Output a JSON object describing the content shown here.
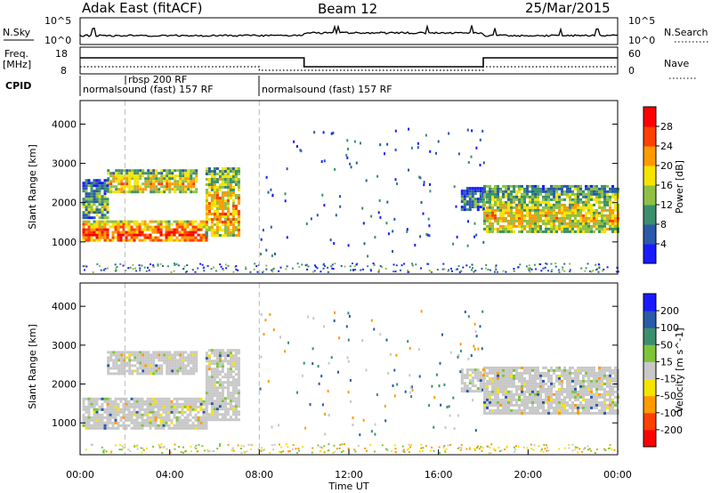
{
  "header": {
    "title": "Adak East (fitACF)",
    "beam": "Beam 12",
    "date": "25/Mar/2015"
  },
  "summary": {
    "nsky_label": "N.Sky",
    "nsky_ticks": [
      "10^5",
      "10^0"
    ],
    "nsearch_ticks": [
      "10^5",
      "10^0"
    ],
    "nsearch_label": "N.Search",
    "freq_label": "Freq.",
    "freq_unit": "[MHz]",
    "freq_ticks": [
      "18",
      "8"
    ],
    "nave_ticks": [
      "60",
      "0"
    ],
    "nave_label": "Nave",
    "cpid_label": "CPID",
    "cpid_segments": [
      {
        "start_h": 0,
        "end_h": 2,
        "label": "normalsound (fast) 157 RF"
      },
      {
        "start_h": 2,
        "end_h": 8,
        "label": "rbsp 200 RF"
      },
      {
        "start_h": 8,
        "end_h": 24,
        "label": "normalsound (fast) 157 RF"
      }
    ]
  },
  "chart_data": [
    {
      "type": "heatmap",
      "name": "power",
      "ylabel": "Slant Range [km]",
      "xlabel": "",
      "xlim_hours": [
        0,
        24
      ],
      "ylim_km": [
        180,
        4600
      ],
      "yticks": [
        1000,
        2000,
        3000,
        4000
      ],
      "colorbar_label": "Power [dB]",
      "colorbar_ticks": [
        "4",
        "8",
        "12",
        "16",
        "20",
        "24",
        "28"
      ],
      "colors": [
        "#1a1aff",
        "#2a5aa8",
        "#3a8f6e",
        "#8fc043",
        "#f5e300",
        "#ff9a00",
        "#ff4000",
        "#ff0000"
      ],
      "regions": [
        {
          "t0": 0.1,
          "t1": 5.6,
          "r0": 1050,
          "r1": 1550,
          "level": 0.85
        },
        {
          "t0": 5.6,
          "t1": 7.1,
          "r0": 1150,
          "r1": 2900,
          "level": 0.7
        },
        {
          "t0": 1.2,
          "t1": 5.2,
          "r0": 2300,
          "r1": 2850,
          "level": 0.65
        },
        {
          "t0": 0.1,
          "t1": 1.2,
          "r0": 1600,
          "r1": 2600,
          "level": 0.45
        },
        {
          "t0": 17.0,
          "t1": 18.0,
          "r0": 1800,
          "r1": 2400,
          "level": 0.35
        },
        {
          "t0": 18.0,
          "t1": 24.0,
          "r0": 1250,
          "r1": 2450,
          "level": 0.6
        }
      ]
    },
    {
      "type": "heatmap",
      "name": "velocity",
      "ylabel": "Slant Range [km]",
      "xlabel": "Time UT",
      "xlim_hours": [
        0,
        24
      ],
      "ylim_km": [
        180,
        4600
      ],
      "yticks": [
        1000,
        2000,
        3000,
        4000
      ],
      "xticks": [
        "00:00",
        "04:00",
        "08:00",
        "12:00",
        "16:00",
        "20:00",
        "00:00"
      ],
      "colorbar_label": "Velocity [m s^-1]",
      "colorbar_ticks": [
        "200",
        "100",
        "50",
        "15",
        "-15",
        "-50",
        "-100",
        "-200"
      ],
      "colors": [
        "#1a1aff",
        "#2a5aa8",
        "#3a8f6e",
        "#7ec43a",
        "#c8c8c8",
        "#f5e300",
        "#ff9a00",
        "#ff4000",
        "#ff0000"
      ],
      "regions": [
        {
          "t0": 0.1,
          "t1": 5.6,
          "r0": 850,
          "r1": 1650,
          "level": 0.5
        },
        {
          "t0": 5.6,
          "t1": 7.1,
          "r0": 1100,
          "r1": 2900,
          "level": 0.5
        },
        {
          "t0": 1.2,
          "t1": 5.2,
          "r0": 2300,
          "r1": 2850,
          "level": 0.5
        },
        {
          "t0": 18.0,
          "t1": 24.0,
          "r0": 1250,
          "r1": 2450,
          "level": 0.5
        },
        {
          "t0": 17.0,
          "t1": 18.0,
          "r0": 1800,
          "r1": 2400,
          "level": 0.35
        }
      ]
    }
  ]
}
